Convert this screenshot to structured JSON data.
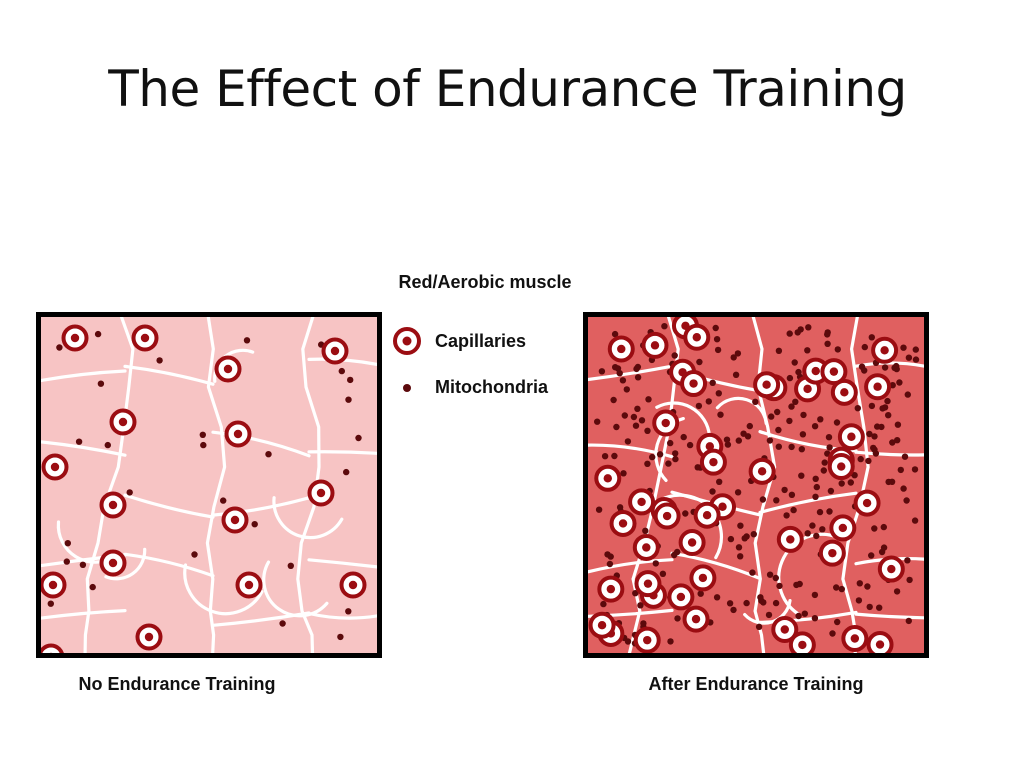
{
  "slide": {
    "title": "The Effect of Endurance Training"
  },
  "diagram": {
    "heading": "Red/Aerobic muscle",
    "legend": {
      "capillaries_label": "Capillaries",
      "mitochondria_label": "Mitochondria"
    },
    "colors": {
      "marker": "#9b0d12",
      "marker_dark": "#5c0a0c",
      "before_tissue": "#f7c4c4",
      "after_tissue": "#e06060",
      "membrane": "#ffffff",
      "border": "#000000"
    },
    "panels": [
      {
        "id": "before",
        "caption": "No Endurance Training",
        "capillary_count": 16,
        "mitochondria_count": 34
      },
      {
        "id": "after",
        "caption": "After Endurance Training",
        "capillary_count": 48,
        "mitochondria_count": 290
      }
    ]
  }
}
